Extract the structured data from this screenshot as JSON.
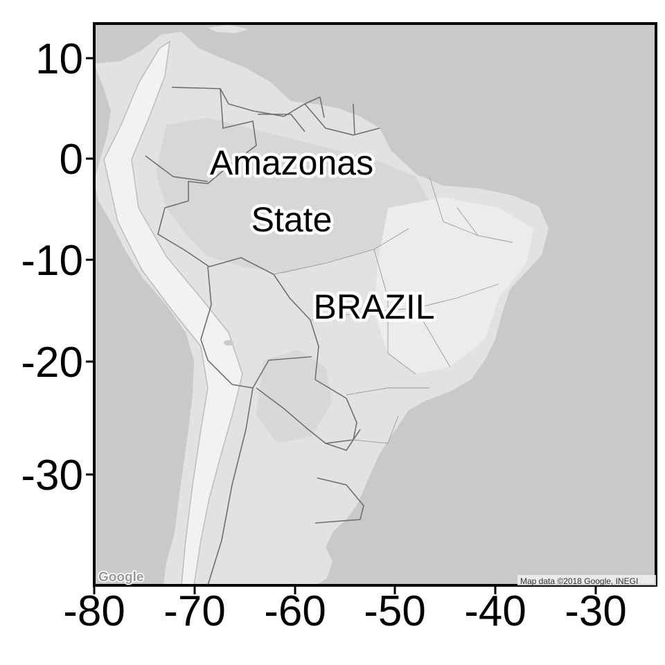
{
  "map": {
    "labels": {
      "amazonas_line1": "Amazonas",
      "amazonas_line2": "State",
      "brazil": "BRAZIL"
    },
    "x_ticks": [
      "-80",
      "-70",
      "-60",
      "-50",
      "-40",
      "-30"
    ],
    "y_ticks": [
      "10",
      "0",
      "-10",
      "-20",
      "-30"
    ],
    "attribution": "Map data ©2018 Google, INEGI",
    "logo": "Google",
    "colors": {
      "ocean": "#c9c9c9",
      "land": "#e2e2e2",
      "land_light": "#ececec",
      "lowland": "#d8d8d8",
      "border": "#6f6f6f",
      "frame": "#000000"
    }
  }
}
